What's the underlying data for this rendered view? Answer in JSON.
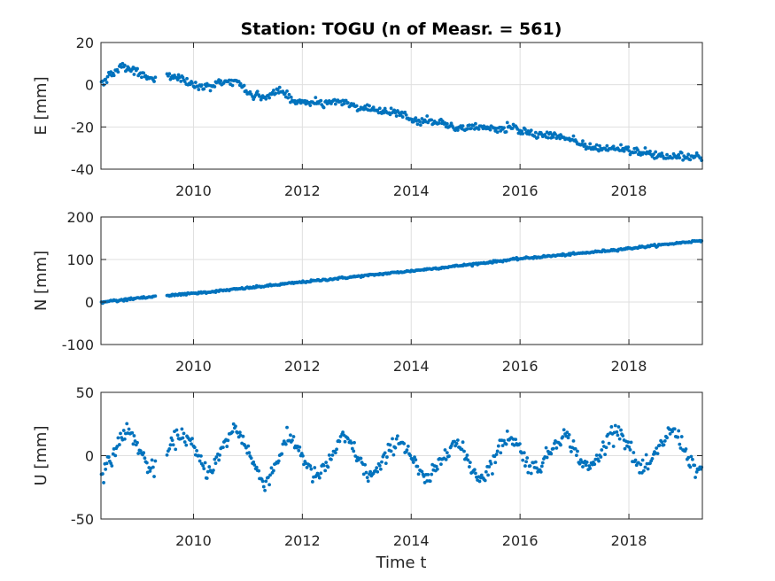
{
  "chart_data": {
    "type": "scatter",
    "title": "Station: TOGU (n of Measr. = 561)",
    "xlabel": "Time t",
    "marker_color": "#0072bd",
    "n_points": 561,
    "xlim": [
      2008.3,
      2019.35
    ],
    "xticks": [
      2010,
      2012,
      2014,
      2016,
      2018
    ],
    "xtick_labels": [
      "2010",
      "2012",
      "2014",
      "2016",
      "2018"
    ],
    "grid": true,
    "panels": [
      {
        "name": "east",
        "ylabel": "E [mm]",
        "ylim": [
          -40,
          20
        ],
        "yticks": [
          -40,
          -20,
          0,
          20
        ],
        "ytick_labels": [
          "-40",
          "-20",
          "0",
          "20"
        ],
        "gaps": [
          [
            2009.3,
            2009.5
          ]
        ],
        "points": [
          [
            2008.35,
            2
          ],
          [
            2008.5,
            5
          ],
          [
            2008.7,
            9
          ],
          [
            2008.85,
            7
          ],
          [
            2009.0,
            6
          ],
          [
            2009.2,
            3
          ],
          [
            2009.5,
            5
          ],
          [
            2009.8,
            3
          ],
          [
            2010.0,
            0
          ],
          [
            2010.3,
            -1
          ],
          [
            2010.5,
            1
          ],
          [
            2010.8,
            2
          ],
          [
            2011.0,
            -4
          ],
          [
            2011.3,
            -6
          ],
          [
            2011.6,
            -2
          ],
          [
            2011.8,
            -7
          ],
          [
            2012.0,
            -8
          ],
          [
            2012.3,
            -9
          ],
          [
            2012.6,
            -8
          ],
          [
            2012.9,
            -9
          ],
          [
            2013.0,
            -11
          ],
          [
            2013.3,
            -12
          ],
          [
            2013.6,
            -13
          ],
          [
            2013.9,
            -14
          ],
          [
            2014.0,
            -17
          ],
          [
            2014.3,
            -17
          ],
          [
            2014.6,
            -18
          ],
          [
            2014.8,
            -21
          ],
          [
            2015.0,
            -20
          ],
          [
            2015.3,
            -20
          ],
          [
            2015.6,
            -21
          ],
          [
            2015.9,
            -20
          ],
          [
            2016.0,
            -22
          ],
          [
            2016.3,
            -24
          ],
          [
            2016.6,
            -24
          ],
          [
            2016.9,
            -25
          ],
          [
            2017.1,
            -28
          ],
          [
            2017.4,
            -30
          ],
          [
            2017.7,
            -30
          ],
          [
            2018.0,
            -31
          ],
          [
            2018.3,
            -32
          ],
          [
            2018.6,
            -34
          ],
          [
            2018.9,
            -34
          ],
          [
            2019.1,
            -34
          ],
          [
            2019.3,
            -35
          ]
        ]
      },
      {
        "name": "north",
        "ylabel": "N [mm]",
        "ylim": [
          -100,
          200
        ],
        "yticks": [
          -100,
          0,
          100,
          200
        ],
        "ytick_labels": [
          "-100",
          "0",
          "100",
          "200"
        ],
        "gaps": [
          [
            2009.3,
            2009.5
          ]
        ],
        "points": [
          [
            2008.3,
            0
          ],
          [
            2009.3,
            13
          ],
          [
            2009.5,
            15
          ],
          [
            2010.0,
            20
          ],
          [
            2011.0,
            33
          ],
          [
            2012.0,
            47
          ],
          [
            2013.0,
            60
          ],
          [
            2014.0,
            73
          ],
          [
            2015.0,
            87
          ],
          [
            2016.0,
            102
          ],
          [
            2017.0,
            113
          ],
          [
            2018.0,
            126
          ],
          [
            2019.35,
            145
          ]
        ]
      },
      {
        "name": "up",
        "ylabel": "U [mm]",
        "ylim": [
          -50,
          50
        ],
        "yticks": [
          -50,
          0,
          50
        ],
        "ytick_labels": [
          "-50",
          "0",
          "50"
        ],
        "gaps": [
          [
            2009.3,
            2009.5
          ]
        ],
        "seasonal": {
          "amplitude": 16,
          "peak_phase": 0.8
        },
        "points": [
          [
            2008.35,
            -10
          ],
          [
            2008.75,
            25
          ],
          [
            2009.2,
            -8
          ],
          [
            2009.75,
            20
          ],
          [
            2010.25,
            -8
          ],
          [
            2010.75,
            30
          ],
          [
            2011.3,
            -28
          ],
          [
            2011.75,
            12
          ],
          [
            2012.2,
            -20
          ],
          [
            2012.75,
            12
          ],
          [
            2013.2,
            -18
          ],
          [
            2013.75,
            10
          ],
          [
            2014.25,
            -25
          ],
          [
            2014.75,
            5
          ],
          [
            2015.25,
            -20
          ],
          [
            2015.8,
            15
          ],
          [
            2016.2,
            -5
          ],
          [
            2016.8,
            17
          ],
          [
            2017.2,
            -5
          ],
          [
            2017.75,
            30
          ],
          [
            2018.2,
            -8
          ],
          [
            2018.8,
            25
          ],
          [
            2019.2,
            -5
          ]
        ]
      }
    ]
  }
}
